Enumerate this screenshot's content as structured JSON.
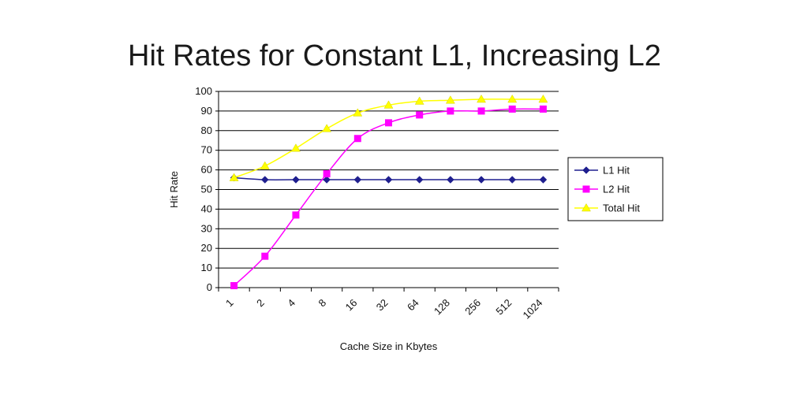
{
  "chart_data": {
    "type": "line",
    "title": "Hit Rates for Constant L1, Increasing L2",
    "xlabel": "Cache Size in Kbytes",
    "ylabel": "Hit Rate",
    "categories": [
      "1",
      "2",
      "4",
      "8",
      "16",
      "32",
      "64",
      "128",
      "256",
      "512",
      "1024"
    ],
    "ylim": [
      0,
      100
    ],
    "yticks": [
      0,
      10,
      20,
      30,
      40,
      50,
      60,
      70,
      80,
      90,
      100
    ],
    "grid": true,
    "legend_position": "right",
    "series": [
      {
        "name": "L1 Hit",
        "color": "#1f1f8f",
        "marker": "diamond",
        "values": [
          56,
          55,
          55,
          55,
          55,
          55,
          55,
          55,
          55,
          55,
          55
        ]
      },
      {
        "name": "L2 Hit",
        "color": "#ff00ff",
        "marker": "square",
        "values": [
          1,
          16,
          37,
          58,
          76,
          84,
          88,
          90,
          90,
          91,
          91
        ]
      },
      {
        "name": "Total Hit",
        "color": "#ffff00",
        "marker": "triangle",
        "values": [
          56,
          62,
          71,
          81,
          89,
          93,
          95,
          95.5,
          96,
          96,
          96
        ]
      }
    ]
  }
}
